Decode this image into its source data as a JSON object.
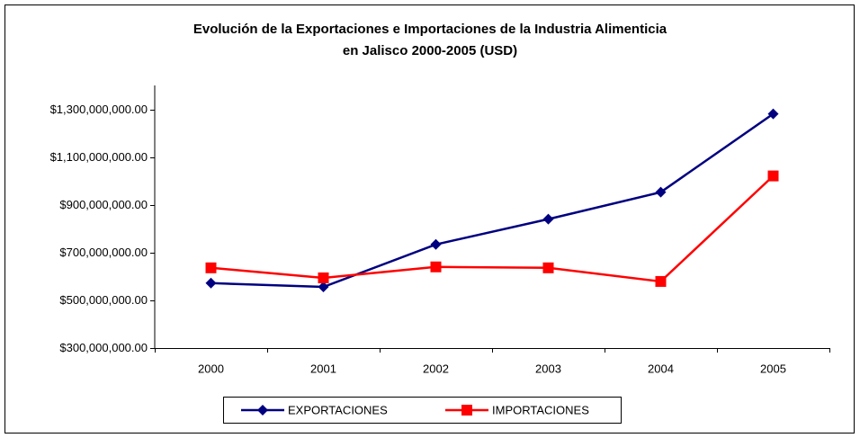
{
  "chart_data": {
    "type": "line",
    "title": [
      "Evolución de la Exportaciones e Importaciones de la Industria Alimenticia",
      "en Jalisco 2000-2005 (USD)"
    ],
    "categories": [
      "2000",
      "2001",
      "2002",
      "2003",
      "2004",
      "2005"
    ],
    "series": [
      {
        "name": "EXPORTACIONES",
        "color": "#000080",
        "marker": "diamond",
        "values": [
          572000000,
          556000000,
          734000000,
          840000000,
          953000000,
          1281000000
        ]
      },
      {
        "name": "IMPORTACIONES",
        "color": "#ff0000",
        "marker": "square",
        "values": [
          636000000,
          594000000,
          640000000,
          636000000,
          579000000,
          1021000000
        ]
      }
    ],
    "ylim": [
      300000000,
      1400000000
    ],
    "yticks": [
      {
        "value": 300000000,
        "label": "$300,000,000.00"
      },
      {
        "value": 500000000,
        "label": "$500,000,000.00"
      },
      {
        "value": 700000000,
        "label": "$700,000,000.00"
      },
      {
        "value": 900000000,
        "label": "$900,000,000.00"
      },
      {
        "value": 1100000000,
        "label": "$1,100,000,000.00"
      },
      {
        "value": 1300000000,
        "label": "$1,300,000,000.00"
      }
    ],
    "grid": false,
    "legend": "bottom"
  }
}
